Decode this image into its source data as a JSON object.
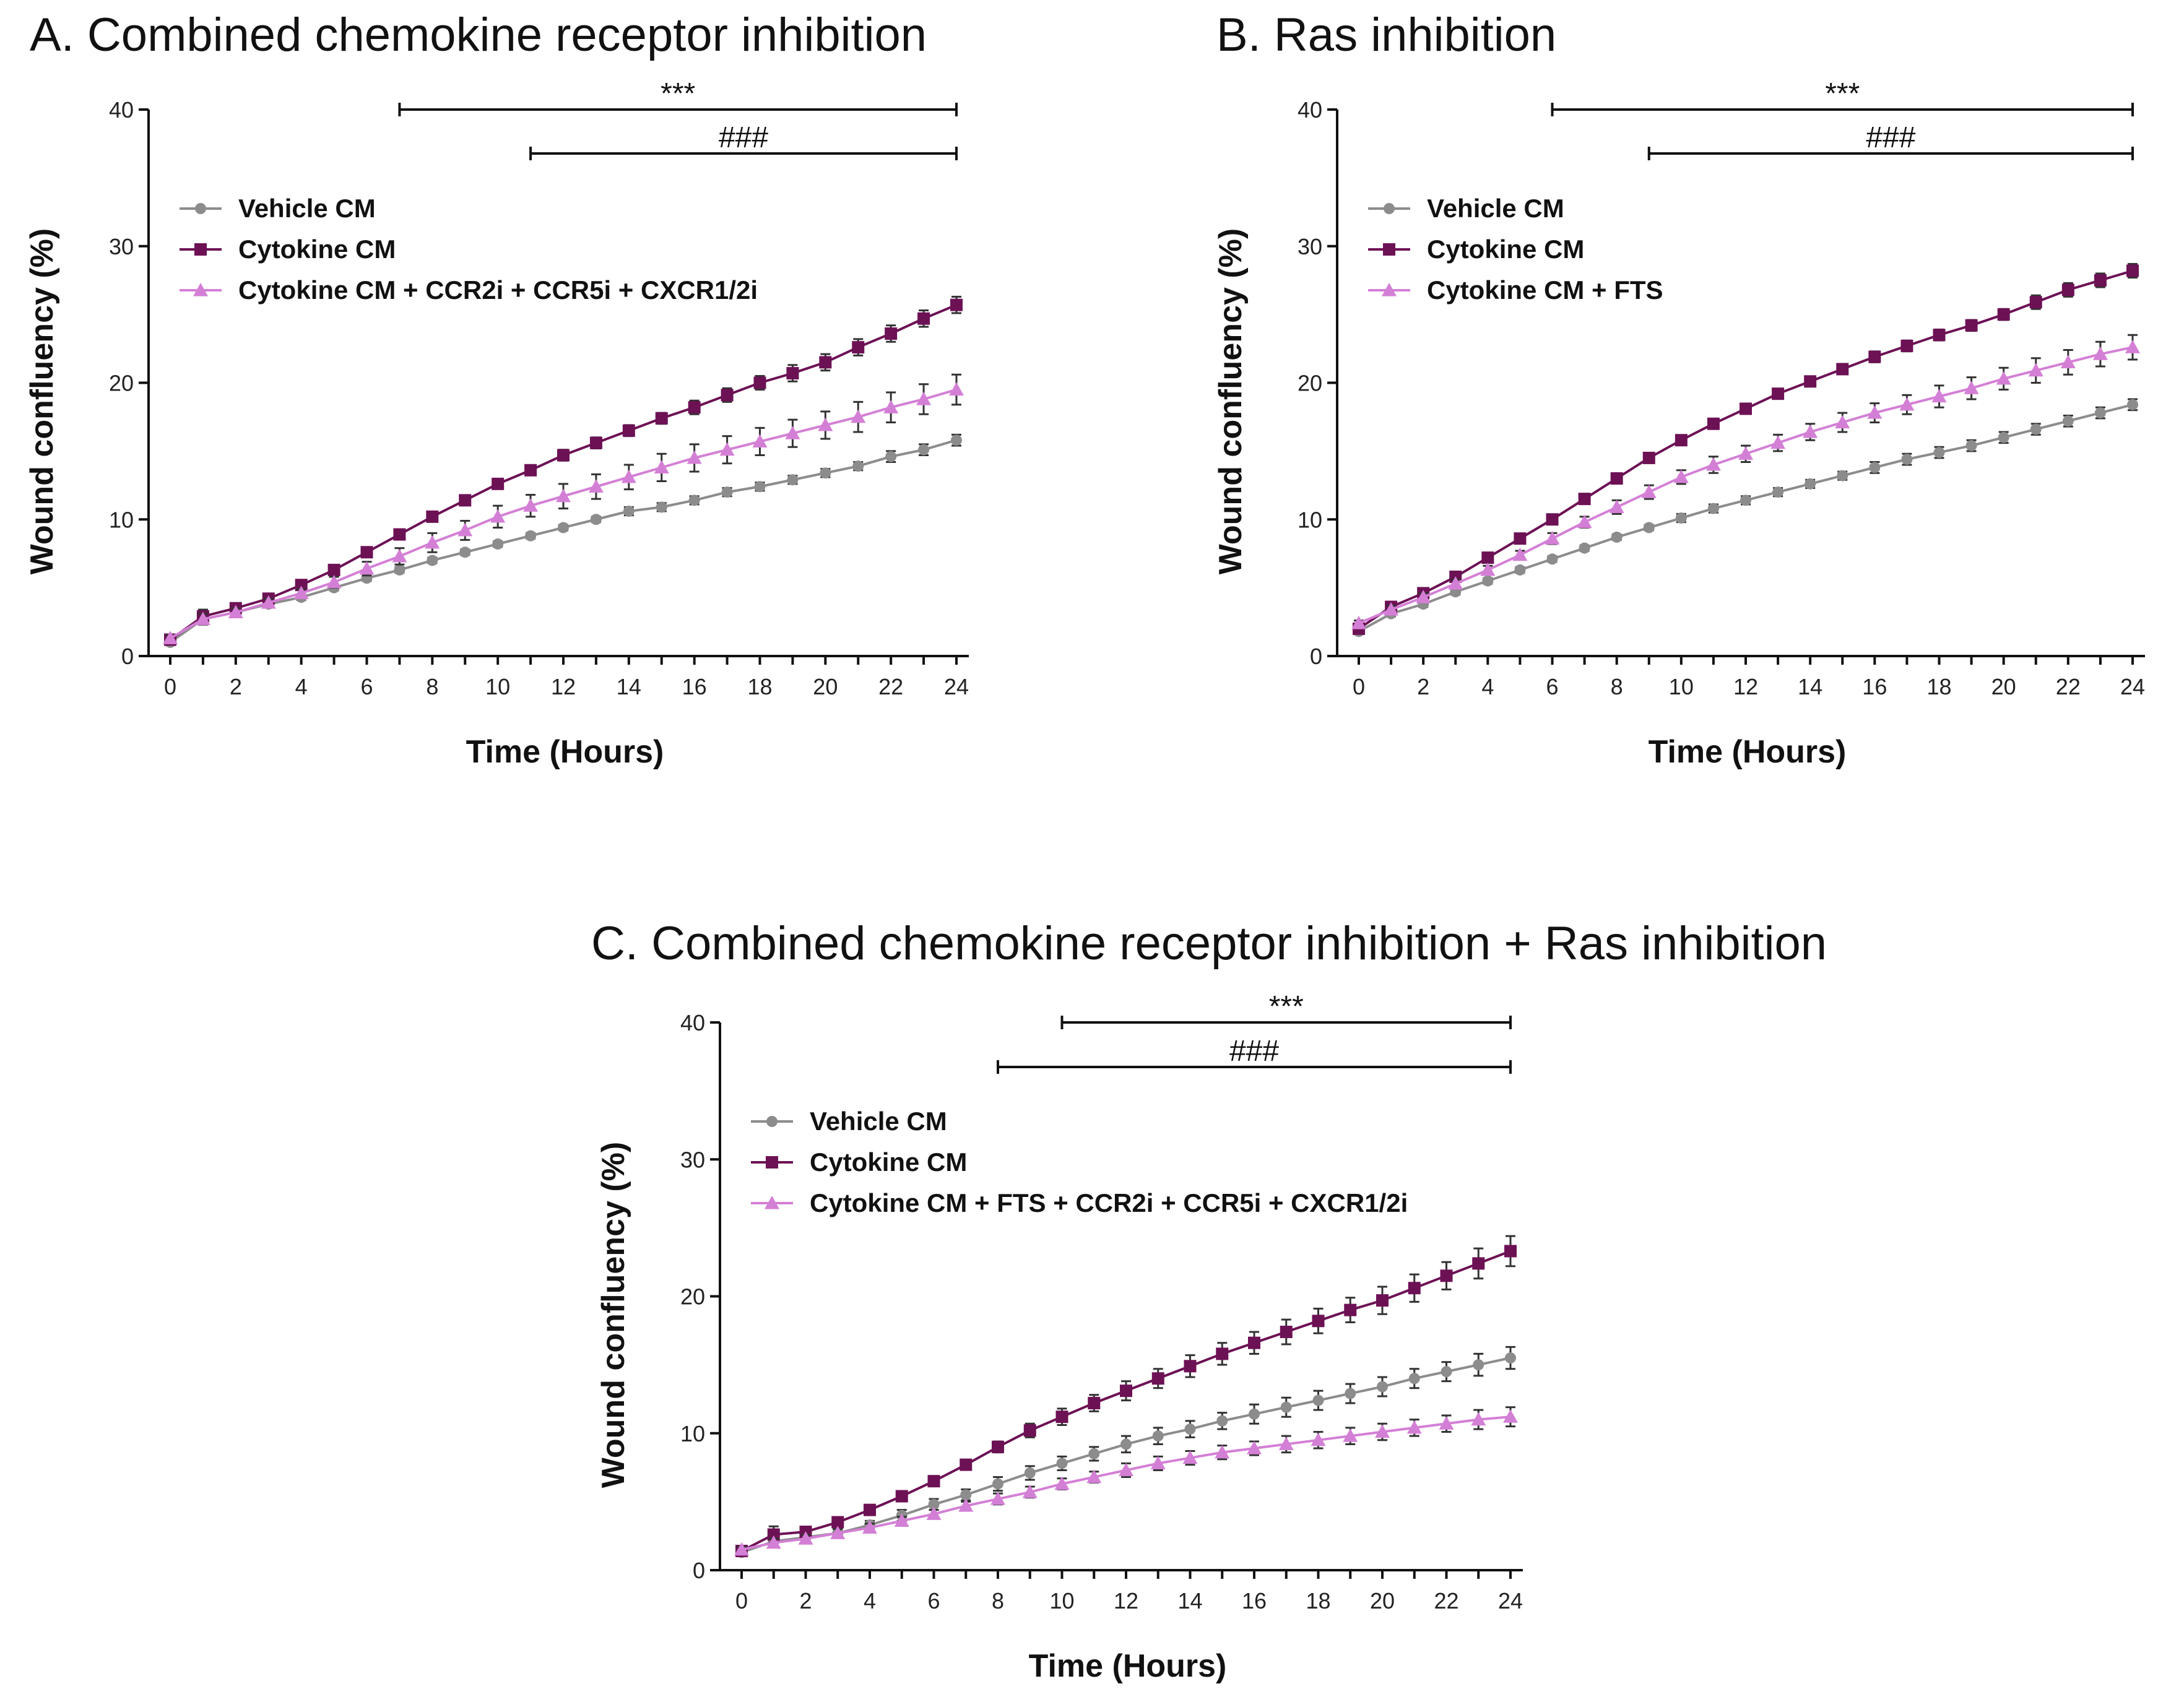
{
  "chart_data": [
    {
      "id": "A",
      "type": "line",
      "title": "A. Combined chemokine receptor inhibition",
      "xlabel": "Time (Hours)",
      "ylabel": "Wound confluency (%)",
      "xlim": [
        0,
        24
      ],
      "ylim": [
        0,
        40
      ],
      "xticks": [
        0,
        2,
        4,
        6,
        8,
        10,
        12,
        14,
        16,
        18,
        20,
        22,
        24
      ],
      "yticks": [
        0,
        10,
        20,
        30,
        40
      ],
      "legend_position": "top-left",
      "x": [
        0,
        1,
        2,
        3,
        4,
        5,
        6,
        7,
        8,
        9,
        10,
        11,
        12,
        13,
        14,
        15,
        16,
        17,
        18,
        19,
        20,
        21,
        22,
        23,
        24
      ],
      "series": [
        {
          "name": "Vehicle CM",
          "color": "#8c8c8c",
          "marker": "circle",
          "values": [
            1.0,
            2.7,
            3.2,
            3.8,
            4.3,
            5.0,
            5.7,
            6.3,
            7.0,
            7.6,
            8.2,
            8.8,
            9.4,
            10.0,
            10.6,
            10.9,
            11.4,
            12.0,
            12.4,
            12.9,
            13.4,
            13.9,
            14.6,
            15.1,
            15.8
          ],
          "err": [
            0.2,
            0.3,
            0.2,
            0.2,
            0.2,
            0.2,
            0.2,
            0.2,
            0.2,
            0.2,
            0.2,
            0.2,
            0.2,
            0.2,
            0.3,
            0.3,
            0.3,
            0.3,
            0.3,
            0.3,
            0.3,
            0.3,
            0.4,
            0.4,
            0.4
          ]
        },
        {
          "name": "Cytokine CM",
          "color": "#6d1155",
          "marker": "square",
          "values": [
            1.2,
            2.9,
            3.5,
            4.2,
            5.2,
            6.3,
            7.6,
            8.9,
            10.2,
            11.4,
            12.6,
            13.6,
            14.7,
            15.6,
            16.5,
            17.4,
            18.2,
            19.1,
            20.0,
            20.7,
            21.5,
            22.6,
            23.6,
            24.7,
            25.7
          ],
          "err": [
            0.2,
            0.5,
            0.3,
            0.3,
            0.3,
            0.3,
            0.3,
            0.3,
            0.3,
            0.3,
            0.3,
            0.3,
            0.4,
            0.4,
            0.4,
            0.4,
            0.5,
            0.5,
            0.5,
            0.6,
            0.6,
            0.6,
            0.6,
            0.6,
            0.6
          ]
        },
        {
          "name": "Cytokine CM + CCR2i + CCR5i + CXCR1/2i",
          "color": "#d47fd6",
          "marker": "triangle",
          "values": [
            1.3,
            2.7,
            3.2,
            3.9,
            4.6,
            5.4,
            6.4,
            7.3,
            8.3,
            9.2,
            10.2,
            11.0,
            11.7,
            12.4,
            13.1,
            13.8,
            14.5,
            15.1,
            15.7,
            16.3,
            16.9,
            17.5,
            18.2,
            18.8,
            19.5
          ],
          "err": [
            0.2,
            0.4,
            0.3,
            0.3,
            0.3,
            0.4,
            0.5,
            0.6,
            0.7,
            0.7,
            0.8,
            0.8,
            0.9,
            0.9,
            0.9,
            1.0,
            1.0,
            1.0,
            1.0,
            1.0,
            1.0,
            1.1,
            1.1,
            1.1,
            1.1
          ]
        }
      ],
      "significance": [
        {
          "label": "***",
          "x_start": 7,
          "x_end": 24
        },
        {
          "label": "###",
          "x_start": 11,
          "x_end": 24
        }
      ]
    },
    {
      "id": "B",
      "type": "line",
      "title": "B. Ras inhibition",
      "xlabel": "Time (Hours)",
      "ylabel": "Wound confluency (%)",
      "xlim": [
        0,
        24
      ],
      "ylim": [
        0,
        40
      ],
      "xticks": [
        0,
        2,
        4,
        6,
        8,
        10,
        12,
        14,
        16,
        18,
        20,
        22,
        24
      ],
      "yticks": [
        0,
        10,
        20,
        30,
        40
      ],
      "legend_position": "top-left",
      "x": [
        0,
        1,
        2,
        3,
        4,
        5,
        6,
        7,
        8,
        9,
        10,
        11,
        12,
        13,
        14,
        15,
        16,
        17,
        18,
        19,
        20,
        21,
        22,
        23,
        24
      ],
      "series": [
        {
          "name": "Vehicle CM",
          "color": "#8c8c8c",
          "marker": "circle",
          "values": [
            1.8,
            3.1,
            3.8,
            4.7,
            5.5,
            6.3,
            7.1,
            7.9,
            8.7,
            9.4,
            10.1,
            10.8,
            11.4,
            12.0,
            12.6,
            13.2,
            13.8,
            14.4,
            14.9,
            15.4,
            16.0,
            16.6,
            17.2,
            17.8,
            18.4
          ],
          "err": [
            0.2,
            0.2,
            0.2,
            0.2,
            0.2,
            0.2,
            0.2,
            0.2,
            0.2,
            0.2,
            0.3,
            0.3,
            0.3,
            0.3,
            0.3,
            0.3,
            0.4,
            0.4,
            0.4,
            0.4,
            0.4,
            0.4,
            0.4,
            0.4,
            0.4
          ]
        },
        {
          "name": "Cytokine CM",
          "color": "#6d1155",
          "marker": "square",
          "values": [
            2.0,
            3.6,
            4.6,
            5.8,
            7.2,
            8.6,
            10.0,
            11.5,
            13.0,
            14.5,
            15.8,
            17.0,
            18.1,
            19.2,
            20.1,
            21.0,
            21.9,
            22.7,
            23.5,
            24.2,
            25.0,
            25.9,
            26.8,
            27.5,
            28.2
          ],
          "err": [
            0.2,
            0.2,
            0.2,
            0.2,
            0.2,
            0.2,
            0.2,
            0.2,
            0.2,
            0.3,
            0.3,
            0.3,
            0.3,
            0.3,
            0.3,
            0.3,
            0.4,
            0.4,
            0.4,
            0.4,
            0.4,
            0.5,
            0.5,
            0.5,
            0.5
          ]
        },
        {
          "name": "Cytokine CM + FTS",
          "color": "#d47fd6",
          "marker": "triangle",
          "values": [
            2.4,
            3.4,
            4.3,
            5.3,
            6.3,
            7.4,
            8.6,
            9.8,
            10.9,
            12.0,
            13.1,
            14.0,
            14.8,
            15.6,
            16.4,
            17.1,
            17.8,
            18.4,
            19.0,
            19.6,
            20.3,
            20.9,
            21.5,
            22.1,
            22.6
          ],
          "err": [
            0.2,
            0.3,
            0.3,
            0.3,
            0.3,
            0.3,
            0.4,
            0.4,
            0.5,
            0.5,
            0.5,
            0.6,
            0.6,
            0.6,
            0.6,
            0.7,
            0.7,
            0.7,
            0.8,
            0.8,
            0.8,
            0.9,
            0.9,
            0.9,
            0.9
          ]
        }
      ],
      "significance": [
        {
          "label": "***",
          "x_start": 6,
          "x_end": 24
        },
        {
          "label": "###",
          "x_start": 9,
          "x_end": 24
        }
      ]
    },
    {
      "id": "C",
      "type": "line",
      "title": "C. Combined chemokine receptor inhibition + Ras inhibition",
      "xlabel": "Time (Hours)",
      "ylabel": "Wound confluency (%)",
      "xlim": [
        0,
        24
      ],
      "ylim": [
        0,
        40
      ],
      "xticks": [
        0,
        2,
        4,
        6,
        8,
        10,
        12,
        14,
        16,
        18,
        20,
        22,
        24
      ],
      "yticks": [
        0,
        10,
        20,
        30,
        40
      ],
      "legend_position": "top-left",
      "x": [
        0,
        1,
        2,
        3,
        4,
        5,
        6,
        7,
        8,
        9,
        10,
        11,
        12,
        13,
        14,
        15,
        16,
        17,
        18,
        19,
        20,
        21,
        22,
        23,
        24
      ],
      "series": [
        {
          "name": "Vehicle CM",
          "color": "#8c8c8c",
          "marker": "circle",
          "values": [
            1.3,
            2.1,
            2.4,
            2.7,
            3.3,
            4.0,
            4.8,
            5.5,
            6.3,
            7.1,
            7.8,
            8.5,
            9.2,
            9.8,
            10.3,
            10.9,
            11.4,
            11.9,
            12.4,
            12.9,
            13.4,
            14.0,
            14.5,
            15.0,
            15.5
          ],
          "err": [
            0.2,
            0.3,
            0.3,
            0.3,
            0.3,
            0.4,
            0.4,
            0.4,
            0.5,
            0.5,
            0.5,
            0.5,
            0.6,
            0.6,
            0.6,
            0.6,
            0.7,
            0.7,
            0.7,
            0.7,
            0.7,
            0.7,
            0.7,
            0.8,
            0.8
          ]
        },
        {
          "name": "Cytokine CM",
          "color": "#6d1155",
          "marker": "square",
          "values": [
            1.4,
            2.6,
            2.8,
            3.5,
            4.4,
            5.4,
            6.5,
            7.7,
            9.0,
            10.2,
            11.2,
            12.2,
            13.1,
            14.0,
            14.9,
            15.8,
            16.6,
            17.4,
            18.2,
            19.0,
            19.7,
            20.6,
            21.5,
            22.4,
            23.3
          ],
          "err": [
            0.3,
            0.6,
            0.3,
            0.3,
            0.3,
            0.3,
            0.3,
            0.3,
            0.4,
            0.5,
            0.6,
            0.6,
            0.7,
            0.7,
            0.8,
            0.8,
            0.8,
            0.9,
            0.9,
            0.9,
            1.0,
            1.0,
            1.0,
            1.1,
            1.1
          ]
        },
        {
          "name": "Cytokine CM + FTS + CCR2i + CCR5i + CXCR1/2i",
          "color": "#d47fd6",
          "marker": "triangle",
          "values": [
            1.5,
            2.0,
            2.3,
            2.7,
            3.1,
            3.6,
            4.1,
            4.7,
            5.2,
            5.7,
            6.3,
            6.8,
            7.3,
            7.8,
            8.2,
            8.6,
            8.9,
            9.2,
            9.5,
            9.8,
            10.1,
            10.4,
            10.7,
            11.0,
            11.2
          ],
          "err": [
            0.2,
            0.3,
            0.3,
            0.3,
            0.3,
            0.3,
            0.3,
            0.3,
            0.4,
            0.4,
            0.4,
            0.4,
            0.5,
            0.5,
            0.5,
            0.5,
            0.5,
            0.6,
            0.6,
            0.6,
            0.6,
            0.6,
            0.6,
            0.7,
            0.7
          ]
        }
      ],
      "significance": [
        {
          "label": "***",
          "x_start": 10,
          "x_end": 24
        },
        {
          "label": "###",
          "x_start": 8,
          "x_end": 24
        }
      ]
    }
  ]
}
